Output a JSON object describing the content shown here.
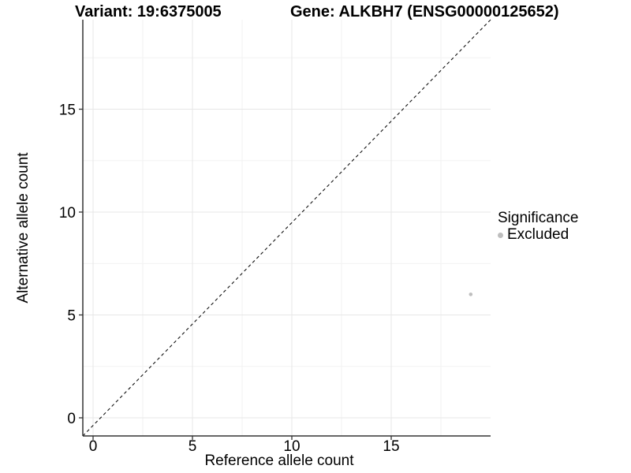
{
  "chart_data": {
    "type": "scatter",
    "titles": {
      "variant": "Variant: 19:6375005",
      "gene": "Gene: ALKBH7 (ENSG00000125652)"
    },
    "xlabel": "Reference allele count",
    "ylabel": "Alternative allele count",
    "x_ticks": [
      0,
      5,
      10,
      15
    ],
    "y_ticks": [
      0,
      5,
      10,
      15
    ],
    "x_minor_ticks": [
      2.5,
      7.5,
      12.5,
      17.5
    ],
    "y_minor_ticks": [
      2.5,
      7.5,
      12.5,
      17.5
    ],
    "xlim": [
      -0.5,
      20
    ],
    "ylim": [
      -0.9,
      19.4
    ],
    "grid": "major+minor",
    "identity_line": {
      "style": "dashed",
      "slope": 1,
      "intercept": 0
    },
    "points": [
      {
        "x": 19,
        "y": 6,
        "significance": "Excluded"
      }
    ],
    "legend": {
      "title": "Significance",
      "position": "right",
      "entries": [
        {
          "label": "Excluded",
          "color": "#bebebe",
          "marker": "circle"
        }
      ]
    },
    "colors": {
      "point": "#bebebe",
      "axis": "#333333",
      "grid_major": "#e7e7e7",
      "grid_minor": "#f2f2f2",
      "dashed_line": "#111111",
      "text": "#000000",
      "background": "#ffffff"
    }
  }
}
